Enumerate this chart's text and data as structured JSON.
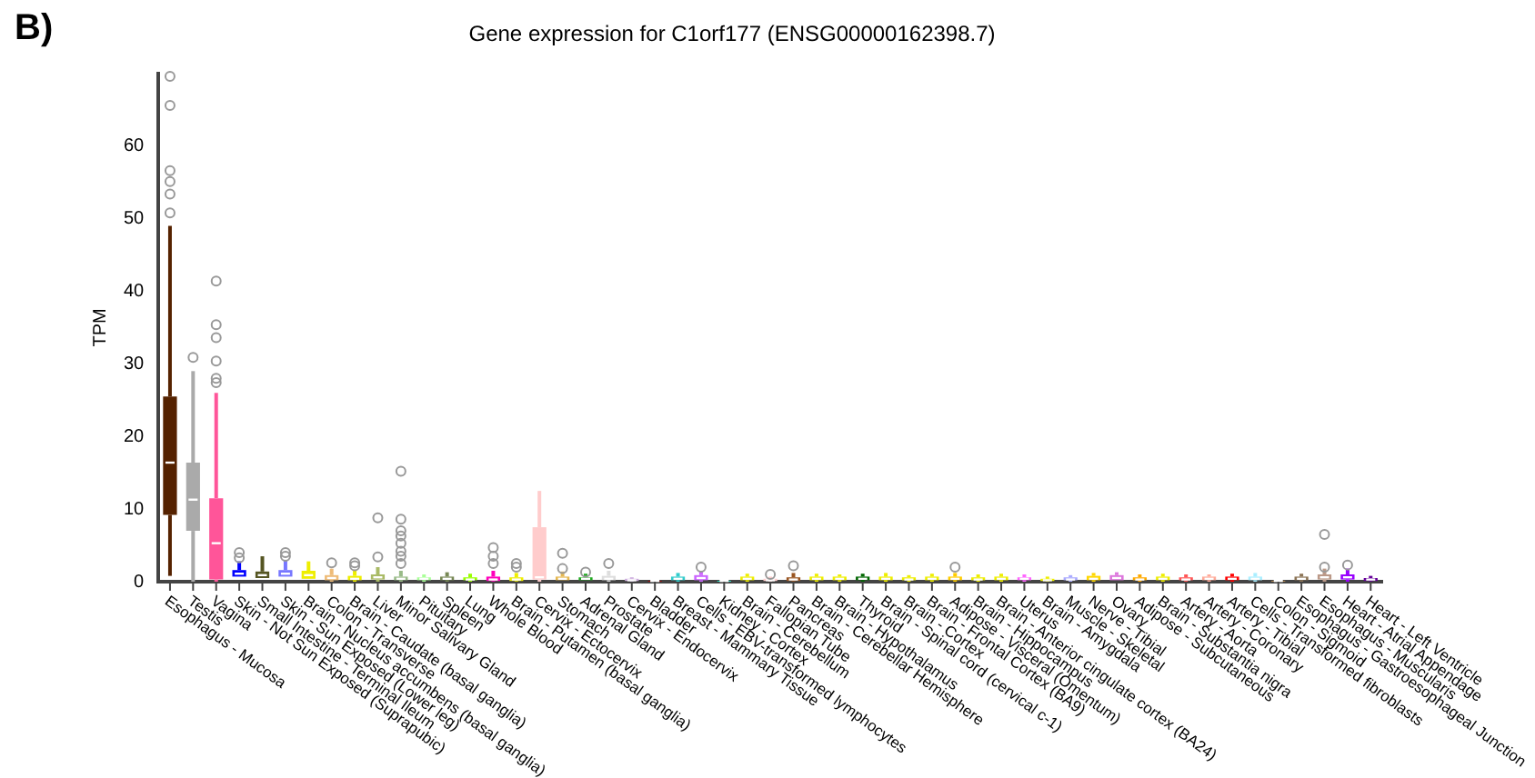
{
  "chart_data": {
    "type": "box",
    "title": "Gene expression for C1orf177 (ENSG00000162398.7)",
    "ylabel": "TPM",
    "annotations": [
      "B)"
    ],
    "categories": [
      "Esophagus - Mucosa",
      "Testis",
      "Vagina",
      "Skin - Not Sun Exposed (Suprapubic)",
      "Small Intestine - Terminal Ileum",
      "Skin - Sun Exposed (Lower leg)",
      "Brain - Nucleus accumbens (basal ganglia)",
      "Colon - Transverse",
      "Brain - Caudate (basal ganglia)",
      "Liver",
      "Minor Salivary Gland",
      "Pituitary",
      "Spleen",
      "Lung",
      "Whole Blood",
      "Brain - Putamen (basal ganglia)",
      "Cervix - Ectocervix",
      "Stomach",
      "Adrenal Gland",
      "Prostate",
      "Cervix - Endocervix",
      "Bladder",
      "Breast - Mammary Tissue",
      "Cells - EBV-transformed lymphocytes",
      "Kidney - Cortex",
      "Brain - Cerebellum",
      "Fallopian Tube",
      "Pancreas",
      "Brain - Cerebellar Hemisphere",
      "Brain - Hypothalamus",
      "Thyroid",
      "Brain - Spinal cord (cervical c-1)",
      "Brain - Cortex",
      "Brain - Frontal Cortex (BA9)",
      "Adipose - Visceral (Omentum)",
      "Brain - Hippocampus",
      "Brain - Anterior cingulate cortex (BA24)",
      "Uterus",
      "Brain - Amygdala",
      "Muscle - Skeletal",
      "Nerve - Tibial",
      "Ovary",
      "Adipose - Subcutaneous",
      "Brain - Substantia nigra",
      "Artery - Aorta",
      "Artery - Coronary",
      "Artery - Tibial",
      "Cells - Transformed fibroblasts",
      "Colon - Sigmoid",
      "Esophagus - Gastroesophageal Junction",
      "Esophagus - Muscularis",
      "Heart - Atrial Appendage",
      "Heart - Left Ventricle"
    ],
    "colors": [
      "#552200",
      "#aaaaaa",
      "#ff5599",
      "#0000ff",
      "#555522",
      "#7777ff",
      "#eeee00",
      "#eebb77",
      "#eeee00",
      "#aabb66",
      "#99bb88",
      "#aaff99",
      "#778855",
      "#99ff00",
      "#ff00bb",
      "#eeee00",
      "#ffcccc",
      "#e6b850",
      "#22aa22",
      "#dddddd",
      "#ccaadd",
      "#aa0000",
      "#33cccc",
      "#cc66ff",
      "#22ffdd",
      "#eeee00",
      "#ffcccc",
      "#995522",
      "#eeee00",
      "#eeee00",
      "#006600",
      "#eeee00",
      "#eeee00",
      "#eeee00",
      "#ffcc00",
      "#eeee00",
      "#eeee00",
      "#ff66ff",
      "#eeee00",
      "#aaaaff",
      "#ffd700",
      "#dd77dd",
      "#ffaa00",
      "#eeee00",
      "#ff5555",
      "#ffaa99",
      "#ff0000",
      "#aaeeff",
      "#cc9955",
      "#8b7355",
      "#bb9988",
      "#9900ff",
      "#660099"
    ],
    "boxes": [
      {
        "low": 0.8,
        "q1": 9.2,
        "median": 16.4,
        "q3": 25.5,
        "high": 49,
        "outliers": [
          69.6,
          65.6,
          56.6,
          55.1,
          53.4,
          50.8
        ]
      },
      {
        "low": 0,
        "q1": 7,
        "median": 11.3,
        "q3": 16.4,
        "high": 29,
        "outliers": [
          30.9
        ]
      },
      {
        "low": 0,
        "q1": 0.3,
        "median": 5.3,
        "q3": 11.5,
        "high": 26,
        "outliers": [
          41.4,
          35.4,
          33.6,
          30.4,
          28,
          27.4
        ]
      },
      {
        "low": 0.7,
        "q1": 0.7,
        "median": 1.1,
        "q3": 1.6,
        "high": 2.8,
        "outliers": [
          3.3,
          4
        ]
      },
      {
        "low": 0.5,
        "q1": 0.5,
        "median": 0.9,
        "q3": 1.4,
        "high": 3.5
      },
      {
        "low": 0.7,
        "q1": 0.7,
        "median": 1.1,
        "q3": 1.6,
        "high": 3,
        "outliers": [
          3.5,
          4
        ]
      },
      {
        "low": 0.4,
        "q1": 0.4,
        "median": 0.9,
        "q3": 1.5,
        "high": 2.8
      },
      {
        "low": 0,
        "q1": 0.2,
        "median": 0.5,
        "q3": 0.9,
        "high": 1.8,
        "outliers": [
          2.6
        ]
      },
      {
        "low": 0,
        "q1": 0.2,
        "median": 0.4,
        "q3": 0.8,
        "high": 1.6,
        "outliers": [
          2.2,
          2.6
        ]
      },
      {
        "low": 0,
        "q1": 0.3,
        "median": 0.6,
        "q3": 1,
        "high": 2,
        "outliers": [
          3.4,
          8.8
        ]
      },
      {
        "low": 0,
        "q1": 0.2,
        "median": 0.4,
        "q3": 0.7,
        "high": 1.5,
        "outliers": [
          2.5,
          3.5,
          4.2,
          5.3,
          6.3,
          7,
          8.6,
          15.2
        ]
      },
      {
        "low": 0,
        "q1": 0.2,
        "median": 0.4,
        "q3": 0.6,
        "high": 1
      },
      {
        "low": 0,
        "q1": 0.2,
        "median": 0.4,
        "q3": 0.7,
        "high": 1.3
      },
      {
        "low": 0,
        "q1": 0.2,
        "median": 0.3,
        "q3": 0.6,
        "high": 1.1
      },
      {
        "low": 0,
        "q1": 0.1,
        "median": 0.3,
        "q3": 0.7,
        "high": 1.5,
        "outliers": [
          2.5,
          3.5,
          4.7
        ]
      },
      {
        "low": 0,
        "q1": 0.1,
        "median": 0.3,
        "q3": 0.6,
        "high": 1.2,
        "outliers": [
          2,
          2.5
        ]
      },
      {
        "low": 0,
        "q1": 0.3,
        "median": 0.6,
        "q3": 7.5,
        "high": 12.5
      },
      {
        "low": 0.2,
        "q1": 0.2,
        "median": 0.4,
        "q3": 0.7,
        "high": 1.4,
        "outliers": [
          1.8,
          3.9
        ]
      },
      {
        "low": 0.2,
        "q1": 0.2,
        "median": 0.4,
        "q3": 0.6,
        "high": 1.1,
        "outliers": [
          1.3
        ]
      },
      {
        "low": 0,
        "q1": 0.2,
        "median": 0.4,
        "q3": 0.8,
        "high": 1.5,
        "outliers": [
          2.5
        ]
      },
      {
        "low": 0,
        "q1": 0.1,
        "median": 0.2,
        "q3": 0.4,
        "high": 0.6
      },
      {
        "low": 0,
        "q1": 0,
        "median": 0.1,
        "q3": 0.1,
        "high": 0.2
      },
      {
        "low": 0,
        "q1": 0.2,
        "median": 0.4,
        "q3": 0.7,
        "high": 1.2
      },
      {
        "low": 0,
        "q1": 0.2,
        "median": 0.5,
        "q3": 0.9,
        "high": 1.5,
        "outliers": [
          2
        ]
      },
      {
        "low": 0,
        "q1": 0,
        "median": 0.1,
        "q3": 0.1,
        "high": 0.2
      },
      {
        "low": 0,
        "q1": 0.2,
        "median": 0.4,
        "q3": 0.7,
        "high": 1.1
      },
      {
        "low": 0,
        "q1": 0.1,
        "median": 0.2,
        "q3": 0.4,
        "high": 0.7,
        "outliers": [
          1
        ]
      },
      {
        "low": 0,
        "q1": 0.1,
        "median": 0.3,
        "q3": 0.6,
        "high": 1.2,
        "outliers": [
          2.2
        ]
      },
      {
        "low": 0,
        "q1": 0.2,
        "median": 0.4,
        "q3": 0.7,
        "high": 1.1
      },
      {
        "low": 0,
        "q1": 0.2,
        "median": 0.4,
        "q3": 0.7,
        "high": 1
      },
      {
        "low": 0,
        "q1": 0.2,
        "median": 0.4,
        "q3": 0.7,
        "high": 1.1
      },
      {
        "low": 0,
        "q1": 0.2,
        "median": 0.4,
        "q3": 0.7,
        "high": 1.2
      },
      {
        "low": 0,
        "q1": 0.2,
        "median": 0.3,
        "q3": 0.6,
        "high": 0.9
      },
      {
        "low": 0,
        "q1": 0.2,
        "median": 0.4,
        "q3": 0.7,
        "high": 1.1
      },
      {
        "low": 0,
        "q1": 0.2,
        "median": 0.4,
        "q3": 0.7,
        "high": 1.2,
        "outliers": [
          2
        ]
      },
      {
        "low": 0,
        "q1": 0.2,
        "median": 0.3,
        "q3": 0.6,
        "high": 1
      },
      {
        "low": 0,
        "q1": 0.2,
        "median": 0.4,
        "q3": 0.7,
        "high": 1.1
      },
      {
        "low": 0,
        "q1": 0.2,
        "median": 0.4,
        "q3": 0.6,
        "high": 1
      },
      {
        "low": 0,
        "q1": 0.1,
        "median": 0.2,
        "q3": 0.4,
        "high": 0.7
      },
      {
        "low": 0,
        "q1": 0.2,
        "median": 0.3,
        "q3": 0.6,
        "high": 0.9
      },
      {
        "low": 0,
        "q1": 0.2,
        "median": 0.4,
        "q3": 0.8,
        "high": 1.2
      },
      {
        "low": 0.2,
        "q1": 0.2,
        "median": 0.5,
        "q3": 0.9,
        "high": 1.3
      },
      {
        "low": 0,
        "q1": 0.2,
        "median": 0.3,
        "q3": 0.6,
        "high": 1
      },
      {
        "low": 0,
        "q1": 0.2,
        "median": 0.4,
        "q3": 0.7,
        "high": 1.1
      },
      {
        "low": 0,
        "q1": 0.2,
        "median": 0.3,
        "q3": 0.6,
        "high": 1
      },
      {
        "low": 0,
        "q1": 0.2,
        "median": 0.4,
        "q3": 0.7,
        "high": 1
      },
      {
        "low": 0,
        "q1": 0.2,
        "median": 0.4,
        "q3": 0.7,
        "high": 1.1
      },
      {
        "low": 0,
        "q1": 0.2,
        "median": 0.4,
        "q3": 0.7,
        "high": 1.2
      },
      {
        "low": 0,
        "q1": 0,
        "median": 0.1,
        "q3": 0.1,
        "high": 0.2
      },
      {
        "low": 0,
        "q1": 0.2,
        "median": 0.4,
        "q3": 0.7,
        "high": 1.1
      },
      {
        "low": 0,
        "q1": 0.3,
        "median": 0.6,
        "q3": 1,
        "high": 1.8,
        "outliers": [
          2,
          6.5
        ]
      },
      {
        "low": 0,
        "q1": 0.3,
        "median": 0.6,
        "q3": 1,
        "high": 1.8,
        "outliers": [
          2.3
        ]
      },
      {
        "low": 0,
        "q1": 0.1,
        "median": 0.3,
        "q3": 0.5,
        "high": 0.8
      }
    ],
    "ylim": [
      0,
      70
    ],
    "yticks": [
      0,
      10,
      20,
      30,
      40,
      50,
      60
    ],
    "grid": false,
    "legend": false,
    "marker": "circle"
  }
}
